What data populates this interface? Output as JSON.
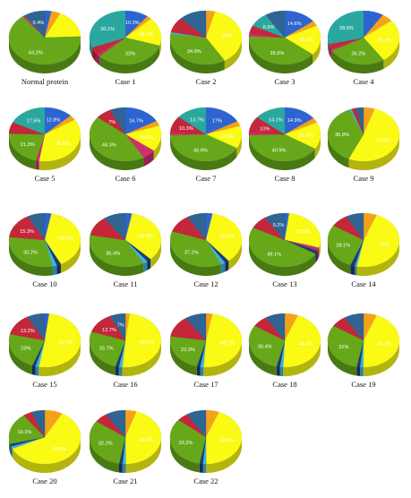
{
  "colors": {
    "blue": "#2e64cf",
    "orange": "#f5a21b",
    "yellow": "#fafa14",
    "green": "#66a81a",
    "teal": "#2aa8a0",
    "red": "#c4273a",
    "steel": "#2f6493",
    "magenta": "#cf2f6c",
    "cyan": "#3fb5d8",
    "navy": "#1c3b78"
  },
  "chart_data": [
    {
      "type": "pie",
      "title": "Normal protein",
      "slices": [
        {
          "color": "blue",
          "value": 3,
          "label": ""
        },
        {
          "color": "orange",
          "value": 4,
          "label": ""
        },
        {
          "color": "yellow",
          "value": 17,
          "label": ""
        },
        {
          "color": "green",
          "value": 64.2,
          "label": "64.2%"
        },
        {
          "color": "magenta",
          "value": 1,
          "label": ""
        },
        {
          "color": "steel",
          "value": 9.4,
          "label": "9.4%"
        }
      ]
    },
    {
      "type": "pie",
      "title": "Case 1",
      "slices": [
        {
          "color": "blue",
          "value": 10.3,
          "label": "10.3%"
        },
        {
          "color": "orange",
          "value": 2,
          "label": ""
        },
        {
          "color": "yellow",
          "value": 16.7,
          "label": "16.7%"
        },
        {
          "color": "green",
          "value": 32,
          "label": "32%"
        },
        {
          "color": "magenta",
          "value": 1.5,
          "label": ""
        },
        {
          "color": "red",
          "value": 4.5,
          "label": ""
        },
        {
          "color": "teal",
          "value": 30.1,
          "label": "30.1%"
        }
      ]
    },
    {
      "type": "pie",
      "title": "Case 2",
      "slices": [
        {
          "color": "orange",
          "value": 4,
          "label": ""
        },
        {
          "color": "yellow",
          "value": 36,
          "label": "36%"
        },
        {
          "color": "green",
          "value": 34.9,
          "label": "34.9%"
        },
        {
          "color": "cyan",
          "value": 1,
          "label": ""
        },
        {
          "color": "red",
          "value": 9,
          "label": ""
        },
        {
          "color": "steel",
          "value": 12,
          "label": ""
        }
      ]
    },
    {
      "type": "pie",
      "title": "Case 3",
      "slices": [
        {
          "color": "blue",
          "value": 14.6,
          "label": "14.6%"
        },
        {
          "color": "orange",
          "value": 3,
          "label": ""
        },
        {
          "color": "yellow",
          "value": 18.1,
          "label": "18.1%"
        },
        {
          "color": "green",
          "value": 39.9,
          "label": "39.9%"
        },
        {
          "color": "magenta",
          "value": 1.5,
          "label": ""
        },
        {
          "color": "red",
          "value": 5,
          "label": ""
        },
        {
          "color": "teal",
          "value": 8.6,
          "label": "8.6%"
        },
        {
          "color": "steel",
          "value": 9,
          "label": ""
        }
      ]
    },
    {
      "type": "pie",
      "title": "Case 4",
      "slices": [
        {
          "color": "blue",
          "value": 9,
          "label": ""
        },
        {
          "color": "orange",
          "value": 5,
          "label": ""
        },
        {
          "color": "yellow",
          "value": 26.1,
          "label": "26.1%"
        },
        {
          "color": "green",
          "value": 26.2,
          "label": "26.2%"
        },
        {
          "color": "magenta",
          "value": 1,
          "label": ""
        },
        {
          "color": "red",
          "value": 3,
          "label": ""
        },
        {
          "color": "teal",
          "value": 28.6,
          "label": "28.6%"
        }
      ]
    },
    {
      "type": "pie",
      "title": "Case 5",
      "slices": [
        {
          "color": "blue",
          "value": 12.8,
          "label": "12.8%"
        },
        {
          "color": "orange",
          "value": 3,
          "label": ""
        },
        {
          "color": "yellow",
          "value": 36.6,
          "label": "36.6%"
        },
        {
          "color": "magenta",
          "value": 1.5,
          "label": ""
        },
        {
          "color": "green",
          "value": 21.3,
          "label": "21.3%"
        },
        {
          "color": "red",
          "value": 7,
          "label": ""
        },
        {
          "color": "teal",
          "value": 17.5,
          "label": "17.5%"
        }
      ]
    },
    {
      "type": "pie",
      "title": "Case 6",
      "slices": [
        {
          "color": "blue",
          "value": 16.7,
          "label": "16.7%"
        },
        {
          "color": "orange",
          "value": 3,
          "label": ""
        },
        {
          "color": "yellow",
          "value": 15.6,
          "label": "15.6%"
        },
        {
          "color": "magenta",
          "value": 6,
          "label": ""
        },
        {
          "color": "green",
          "value": 44.3,
          "label": "44.3%"
        },
        {
          "color": "red",
          "value": 7,
          "label": "7%"
        },
        {
          "color": "steel",
          "value": 7,
          "label": ""
        }
      ]
    },
    {
      "type": "pie",
      "title": "Case 7",
      "slices": [
        {
          "color": "blue",
          "value": 17,
          "label": "17%"
        },
        {
          "color": "orange",
          "value": 3,
          "label": ""
        },
        {
          "color": "yellow",
          "value": 13.6,
          "label": "13.6%"
        },
        {
          "color": "green",
          "value": 40.9,
          "label": "40.9%"
        },
        {
          "color": "magenta",
          "value": 1.5,
          "label": ""
        },
        {
          "color": "red",
          "value": 10.3,
          "label": "10.3%"
        },
        {
          "color": "teal",
          "value": 13.7,
          "label": "13.7%"
        }
      ]
    },
    {
      "type": "pie",
      "title": "Case 8",
      "slices": [
        {
          "color": "blue",
          "value": 14.9,
          "label": "14.9%"
        },
        {
          "color": "orange",
          "value": 3,
          "label": ""
        },
        {
          "color": "yellow",
          "value": 16.4,
          "label": "16.4%"
        },
        {
          "color": "green",
          "value": 40.9,
          "label": "40.9%"
        },
        {
          "color": "magenta",
          "value": 1.5,
          "label": ""
        },
        {
          "color": "red",
          "value": 10,
          "label": "10%"
        },
        {
          "color": "teal",
          "value": 14.1,
          "label": "14.1%"
        }
      ]
    },
    {
      "type": "pie",
      "title": "Case 9",
      "slices": [
        {
          "color": "orange",
          "value": 5,
          "label": ""
        },
        {
          "color": "yellow",
          "value": 51.8,
          "label": "51.8%"
        },
        {
          "color": "green",
          "value": 36.8,
          "label": "36.8%"
        },
        {
          "color": "cyan",
          "value": 1,
          "label": ""
        },
        {
          "color": "red",
          "value": 2,
          "label": ""
        },
        {
          "color": "steel",
          "value": 3.4,
          "label": ""
        }
      ]
    },
    {
      "type": "pie",
      "title": "Case 10",
      "slices": [
        {
          "color": "blue",
          "value": 3,
          "label": ""
        },
        {
          "color": "yellow",
          "value": 39.6,
          "label": "39.6%"
        },
        {
          "color": "navy",
          "value": 2,
          "label": ""
        },
        {
          "color": "cyan",
          "value": 2,
          "label": ""
        },
        {
          "color": "green",
          "value": 30.2,
          "label": "30.2%"
        },
        {
          "color": "red",
          "value": 15.3,
          "label": "15.3%"
        },
        {
          "color": "steel",
          "value": 7.9,
          "label": ""
        }
      ]
    },
    {
      "type": "pie",
      "title": "Case 11",
      "slices": [
        {
          "color": "blue",
          "value": 3,
          "label": ""
        },
        {
          "color": "yellow",
          "value": 34.6,
          "label": "34.6%"
        },
        {
          "color": "navy",
          "value": 2,
          "label": ""
        },
        {
          "color": "cyan",
          "value": 2,
          "label": ""
        },
        {
          "color": "green",
          "value": 36.4,
          "label": "36.4%"
        },
        {
          "color": "red",
          "value": 12,
          "label": ""
        },
        {
          "color": "steel",
          "value": 10,
          "label": ""
        }
      ]
    },
    {
      "type": "pie",
      "title": "Case 12",
      "slices": [
        {
          "color": "blue",
          "value": 3,
          "label": ""
        },
        {
          "color": "yellow",
          "value": 36.1,
          "label": "36.1%"
        },
        {
          "color": "navy",
          "value": 2,
          "label": ""
        },
        {
          "color": "cyan",
          "value": 2,
          "label": ""
        },
        {
          "color": "green",
          "value": 37.2,
          "label": "37.2%"
        },
        {
          "color": "red",
          "value": 11,
          "label": ""
        },
        {
          "color": "steel",
          "value": 8.7,
          "label": ""
        }
      ]
    },
    {
      "type": "pie",
      "title": "Case 13",
      "slices": [
        {
          "color": "blue",
          "value": 2,
          "label": ""
        },
        {
          "color": "yellow",
          "value": 27.6,
          "label": "27.6%"
        },
        {
          "color": "magenta",
          "value": 2,
          "label": ""
        },
        {
          "color": "navy",
          "value": 2,
          "label": ""
        },
        {
          "color": "green",
          "value": 49.1,
          "label": "49.1%"
        },
        {
          "color": "red",
          "value": 8,
          "label": ""
        },
        {
          "color": "steel",
          "value": 9.2,
          "label": "9.2%"
        }
      ]
    },
    {
      "type": "pie",
      "title": "Case 14",
      "slices": [
        {
          "color": "orange",
          "value": 6,
          "label": ""
        },
        {
          "color": "yellow",
          "value": 47,
          "label": "47%"
        },
        {
          "color": "cyan",
          "value": 1,
          "label": ""
        },
        {
          "color": "navy",
          "value": 2,
          "label": ""
        },
        {
          "color": "green",
          "value": 28.1,
          "label": "28.1%"
        },
        {
          "color": "red",
          "value": 8,
          "label": ""
        },
        {
          "color": "steel",
          "value": 7.9,
          "label": ""
        }
      ]
    },
    {
      "type": "pie",
      "title": "Case 15",
      "slices": [
        {
          "color": "blue",
          "value": 2,
          "label": ""
        },
        {
          "color": "yellow",
          "value": 50.7,
          "label": "50.7%"
        },
        {
          "color": "cyan",
          "value": 1.5,
          "label": ""
        },
        {
          "color": "navy",
          "value": 1.5,
          "label": ""
        },
        {
          "color": "green",
          "value": 23,
          "label": "23%"
        },
        {
          "color": "red",
          "value": 13.2,
          "label": "13.2%"
        },
        {
          "color": "steel",
          "value": 8.1,
          "label": ""
        }
      ]
    },
    {
      "type": "pie",
      "title": "Case 16",
      "slices": [
        {
          "color": "orange",
          "value": 2,
          "label": ""
        },
        {
          "color": "yellow",
          "value": 49.2,
          "label": "49.2%"
        },
        {
          "color": "cyan",
          "value": 1.5,
          "label": ""
        },
        {
          "color": "navy",
          "value": 1.5,
          "label": ""
        },
        {
          "color": "green",
          "value": 25.7,
          "label": "25.7%"
        },
        {
          "color": "red",
          "value": 12.7,
          "label": "12.7%"
        },
        {
          "color": "steel",
          "value": 7,
          "label": "7%"
        }
      ]
    },
    {
      "type": "pie",
      "title": "Case 17",
      "slices": [
        {
          "color": "orange",
          "value": 3,
          "label": ""
        },
        {
          "color": "yellow",
          "value": 48.1,
          "label": "48.1%"
        },
        {
          "color": "cyan",
          "value": 1.5,
          "label": ""
        },
        {
          "color": "navy",
          "value": 1.5,
          "label": ""
        },
        {
          "color": "green",
          "value": 23.3,
          "label": "23.3%"
        },
        {
          "color": "red",
          "value": 13,
          "label": ""
        },
        {
          "color": "steel",
          "value": 9.6,
          "label": ""
        }
      ]
    },
    {
      "type": "pie",
      "title": "Case 18",
      "slices": [
        {
          "color": "orange",
          "value": 6,
          "label": ""
        },
        {
          "color": "yellow",
          "value": 44.7,
          "label": "44.7%"
        },
        {
          "color": "cyan",
          "value": 1.5,
          "label": ""
        },
        {
          "color": "navy",
          "value": 1.5,
          "label": ""
        },
        {
          "color": "green",
          "value": 30.4,
          "label": "30.4%"
        },
        {
          "color": "red",
          "value": 7,
          "label": ""
        },
        {
          "color": "steel",
          "value": 8.9,
          "label": ""
        }
      ]
    },
    {
      "type": "pie",
      "title": "Case 19",
      "slices": [
        {
          "color": "orange",
          "value": 6,
          "label": ""
        },
        {
          "color": "yellow",
          "value": 44.1,
          "label": "44.1%"
        },
        {
          "color": "cyan",
          "value": 1.5,
          "label": ""
        },
        {
          "color": "navy",
          "value": 1.5,
          "label": ""
        },
        {
          "color": "green",
          "value": 31,
          "label": "31%"
        },
        {
          "color": "red",
          "value": 7,
          "label": ""
        },
        {
          "color": "steel",
          "value": 8.9,
          "label": ""
        }
      ]
    },
    {
      "type": "pie",
      "title": "Case 20",
      "slices": [
        {
          "color": "orange",
          "value": 8,
          "label": ""
        },
        {
          "color": "yellow",
          "value": 59.9,
          "label": "59.9%"
        },
        {
          "color": "cyan",
          "value": 1.5,
          "label": ""
        },
        {
          "color": "navy",
          "value": 1.5,
          "label": ""
        },
        {
          "color": "green",
          "value": 19.1,
          "label": "19.1%"
        },
        {
          "color": "red",
          "value": 4,
          "label": ""
        },
        {
          "color": "steel",
          "value": 6,
          "label": ""
        }
      ]
    },
    {
      "type": "pie",
      "title": "Case 21",
      "slices": [
        {
          "color": "orange",
          "value": 5,
          "label": ""
        },
        {
          "color": "yellow",
          "value": 44.8,
          "label": "44.8%"
        },
        {
          "color": "cyan",
          "value": 1.5,
          "label": ""
        },
        {
          "color": "navy",
          "value": 1.5,
          "label": ""
        },
        {
          "color": "green",
          "value": 32.2,
          "label": "32.2%"
        },
        {
          "color": "red",
          "value": 6,
          "label": ""
        },
        {
          "color": "steel",
          "value": 9,
          "label": ""
        }
      ]
    },
    {
      "type": "pie",
      "title": "Case 22",
      "slices": [
        {
          "color": "orange",
          "value": 6,
          "label": ""
        },
        {
          "color": "yellow",
          "value": 43.9,
          "label": "43.9%"
        },
        {
          "color": "cyan",
          "value": 1.5,
          "label": ""
        },
        {
          "color": "navy",
          "value": 1.5,
          "label": ""
        },
        {
          "color": "green",
          "value": 33.2,
          "label": "33.2%"
        },
        {
          "color": "red",
          "value": 5,
          "label": ""
        },
        {
          "color": "steel",
          "value": 8.9,
          "label": ""
        }
      ]
    }
  ]
}
